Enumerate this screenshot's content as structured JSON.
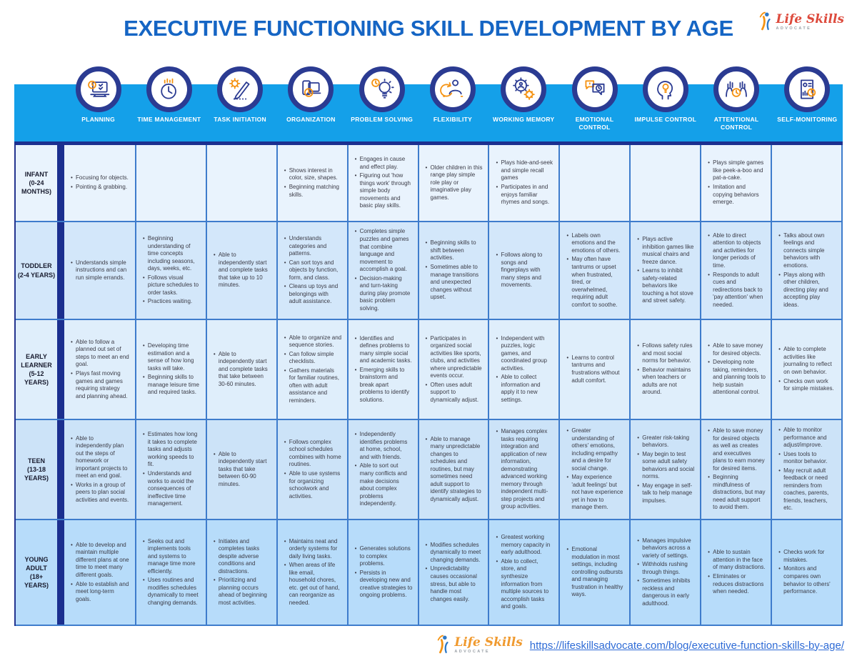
{
  "title": "EXECUTIVE FUNCTIONING SKILL DEVELOPMENT BY AGE",
  "logo": {
    "script": "Life Skills",
    "sub": "ADVOCATE"
  },
  "footer": {
    "url": "https://lifeskillsadvocate.com/blog/executive-function-skills-by-age/"
  },
  "colors": {
    "band": "#14A0E9",
    "badge_ring": "#2B3B92",
    "title_blue": "#1565C4",
    "cell_border": "#3E7CCC",
    "divider_navy": "#1B2F8F",
    "link_blue": "#2E6BD6",
    "icon_navy": "#2B3B92",
    "icon_orange": "#F59312"
  },
  "columns": [
    {
      "label": "PLANNING",
      "icon": "planning-icon"
    },
    {
      "label": "TIME MANAGEMENT",
      "icon": "time-management-icon"
    },
    {
      "label": "TASK INITIATION",
      "icon": "task-initiation-icon"
    },
    {
      "label": "ORGANIZATION",
      "icon": "organization-icon"
    },
    {
      "label": "PROBLEM SOLVING",
      "icon": "problem-solving-icon"
    },
    {
      "label": "FLEXIBILITY",
      "icon": "flexibility-icon"
    },
    {
      "label": "WORKING MEMORY",
      "icon": "working-memory-icon"
    },
    {
      "label": "EMOTIONAL CONTROL",
      "icon": "emotional-control-icon"
    },
    {
      "label": "IMPULSE CONTROL",
      "icon": "impulse-control-icon"
    },
    {
      "label": "ATTENTIONAL CONTROL",
      "icon": "attentional-control-icon"
    },
    {
      "label": "SELF-MONITORING",
      "icon": "self-monitoring-icon"
    }
  ],
  "rows": [
    {
      "age_name": "INFANT",
      "age_range": "(0-24 MONTHS)",
      "bg": "#E9F3FD",
      "cells": [
        [
          "Focusing for objects.",
          "Pointing & grabbing."
        ],
        [],
        [],
        [
          "Shows interest in color, size, shapes.",
          "Beginning matching skills."
        ],
        [
          "Engages in cause and effect play.",
          "Figuring out 'how things work' through simple body movements and basic play skills."
        ],
        [
          "Older children in this range play simple role play or imaginative play games."
        ],
        [
          "Plays hide-and-seek and simple recall games",
          "Participates in and enjoys familiar rhymes and songs."
        ],
        [],
        [],
        [
          "Plays simple games like peek-a-boo and pat-a-cake.",
          "Imitation and copying behaviors emerge."
        ],
        []
      ]
    },
    {
      "age_name": "TODDLER",
      "age_range": "(2-4 YEARS)",
      "bg": "#D3E7FA",
      "cells": [
        [
          "Understands simple instructions and can run simple errands."
        ],
        [
          "Beginning understanding of time concepts including seasons, days, weeks, etc.",
          "Follows visual picture schedules to order tasks.",
          "Practices waiting."
        ],
        [
          "Able to independently start and complete tasks that take up to 10 minutes."
        ],
        [
          "Understands categories and patterns.",
          "Can sort toys and objects by function, form, and class.",
          "Cleans up toys and belongings with adult assistance."
        ],
        [
          "Completes simple puzzles and games that combine language and movement to accomplish a goal.",
          "Decision-making and turn-taking during play promote basic problem solving."
        ],
        [
          "Beginning skills to shift between activities.",
          "Sometimes able to manage transitions and unexpected changes without upset."
        ],
        [
          "Follows along to songs and fingerplays with many steps and movements."
        ],
        [
          "Labels own emotions and the emotions of others.",
          "May often have tantrums or upset when frustrated, tired, or overwhelmed, requiring adult comfort to soothe."
        ],
        [
          "Plays active inhibition games like musical chairs and freeze dance.",
          "Learns to inhibit safety-related behaviors like touching a hot stove and street safety."
        ],
        [
          "Able to direct attention to objects and activities for longer periods of time.",
          "Responds to adult cues and redirections back to 'pay attention' when needed."
        ],
        [
          "Talks about own feelings and connects simple behaviors with emotions.",
          "Plays along with other children, directing play and accepting play ideas."
        ]
      ]
    },
    {
      "age_name": "EARLY LEARNER",
      "age_range": "(5-12 YEARS)",
      "bg": "#DFEEFB",
      "cells": [
        [
          "Able to follow a planned out set of steps to meet an end goal.",
          "Plays fast moving games and games requiring strategy and planning ahead."
        ],
        [
          "Developing time estimation and a sense of how long tasks will take.",
          "Beginning skills to manage leisure time and required tasks."
        ],
        [
          "Able to independently start and complete tasks that take between 30-60 minutes."
        ],
        [
          "Able to organize and sequence stories.",
          "Can follow simple checklists.",
          "Gathers materials for familiar routines, often with adult assistance and reminders."
        ],
        [
          "Identifies and defines problems to many simple social and academic tasks.",
          "Emerging skills to brainstorm and break apart problems to identify solutions."
        ],
        [
          "Participates in organized social activities like sports, clubs, and activities where unpredictable events occur.",
          "Often uses adult support to dynamically adjust."
        ],
        [
          "Independent with puzzles, logic games, and coordinated group activities.",
          "Able to collect information and apply it to new settings."
        ],
        [
          "Learns to control tantrums and frustrations without adult comfort."
        ],
        [
          "Follows safety rules and most social norms for behavior.",
          "Behavior maintains when teachers or adults are not around."
        ],
        [
          "Able to save money for desired objects.",
          "Developing note taking, reminders, and planning tools to help sustain attentional control."
        ],
        [
          "Able to complete activities like journaling to reflect on own behavior.",
          "Checks own work for simple mistakes."
        ]
      ]
    },
    {
      "age_name": "TEEN",
      "age_range": "(13-18 YEARS)",
      "bg": "#CCE3F8",
      "cells": [
        [
          "Able to independently plan out the steps of homework or important projects to meet an end goal.",
          "Works in a group of peers to plan social activities and events."
        ],
        [
          "Estimates how long it takes to complete tasks and adjusts working speeds to fit.",
          "Understands and works to avoid the consequences of ineffective time management."
        ],
        [
          "Able to independently start tasks that take between 60-90 minutes."
        ],
        [
          "Follows complex school schedules combines with home routines.",
          "Able to use systems for organizing schoolwork and activities."
        ],
        [
          "Independently identifies problems at home, school, and with friends.",
          "Able to sort out many conflicts and make decisions about complex problems independently."
        ],
        [
          "Able to manage many unpredictable changes to schedules and routines, but may sometimes need adult support to identify strategies to dynamically adjust."
        ],
        [
          "Manages complex tasks requiring integration and application of new information, demonstrating advanced working memory through independent multi-step projects and group activities."
        ],
        [
          "Greater understanding of others' emotions, including empathy and a desire for social change.",
          "May experience 'adult feelings' but not have experience yet in how to manage them."
        ],
        [
          "Greater risk-taking behaviors.",
          "May begin to test some adult safety behaviors and social norms.",
          "May engage in self-talk to help manage impulses."
        ],
        [
          "Able to save money for desired objects as well as creates and executives plans to earn money for desired items.",
          "Beginning mindfulness of distractions, but may need adult support to avoid them."
        ],
        [
          "Able to monitor performance and adjust/improve.",
          "Uses tools to monitor behavior.",
          "May recruit adult feedback or need reminders from coaches, parents, friends, teachers, etc."
        ]
      ]
    },
    {
      "age_name": "YOUNG ADULT",
      "age_range": "(18+ YEARS)",
      "bg": "#B7DCFA",
      "cells": [
        [
          "Able to develop and maintain multiple different plans at one time to meet many different goals.",
          "Able to establish and meet long-term goals."
        ],
        [
          "Seeks out and implements tools and systems to manage time more efficiently.",
          "Uses routines and modifies schedules dynamically to meet changing demands."
        ],
        [
          "Initiates and completes tasks despite adverse conditions and distractions.",
          "Prioritizing and planning occurs ahead of beginning most activities."
        ],
        [
          "Maintains neat and orderly systems for daily living tasks.",
          "When areas of life like email, household chores, etc. get out of hand, can reorganize as needed."
        ],
        [
          "Generates solutions to complex problems.",
          "Persists in developing new and creative strategies to ongoing problems."
        ],
        [
          "Modifies schedules dynamically to meet changing demands.",
          "Unpredictability causes occasional stress, but able to handle most changes easily."
        ],
        [
          "Greatest working memory capacity in early adulthood.",
          "Able to collect, store, and synthesize information from multiple sources to accomplish tasks and goals."
        ],
        [
          "Emotional modulation in most settings, including controlling outbursts and managing frustration in healthy ways."
        ],
        [
          "Manages impulsive behaviors across a variety of settings.",
          "Withholds rushing through things.",
          "Sometimes inhibits reckless and dangerous in early adulthood."
        ],
        [
          "Able to sustain attention in the face of many distractions.",
          "Eliminates or reduces distractions when needed."
        ],
        [
          "Checks work for mistakes.",
          "Monitors and compares own behavior to others' performance."
        ]
      ]
    }
  ]
}
